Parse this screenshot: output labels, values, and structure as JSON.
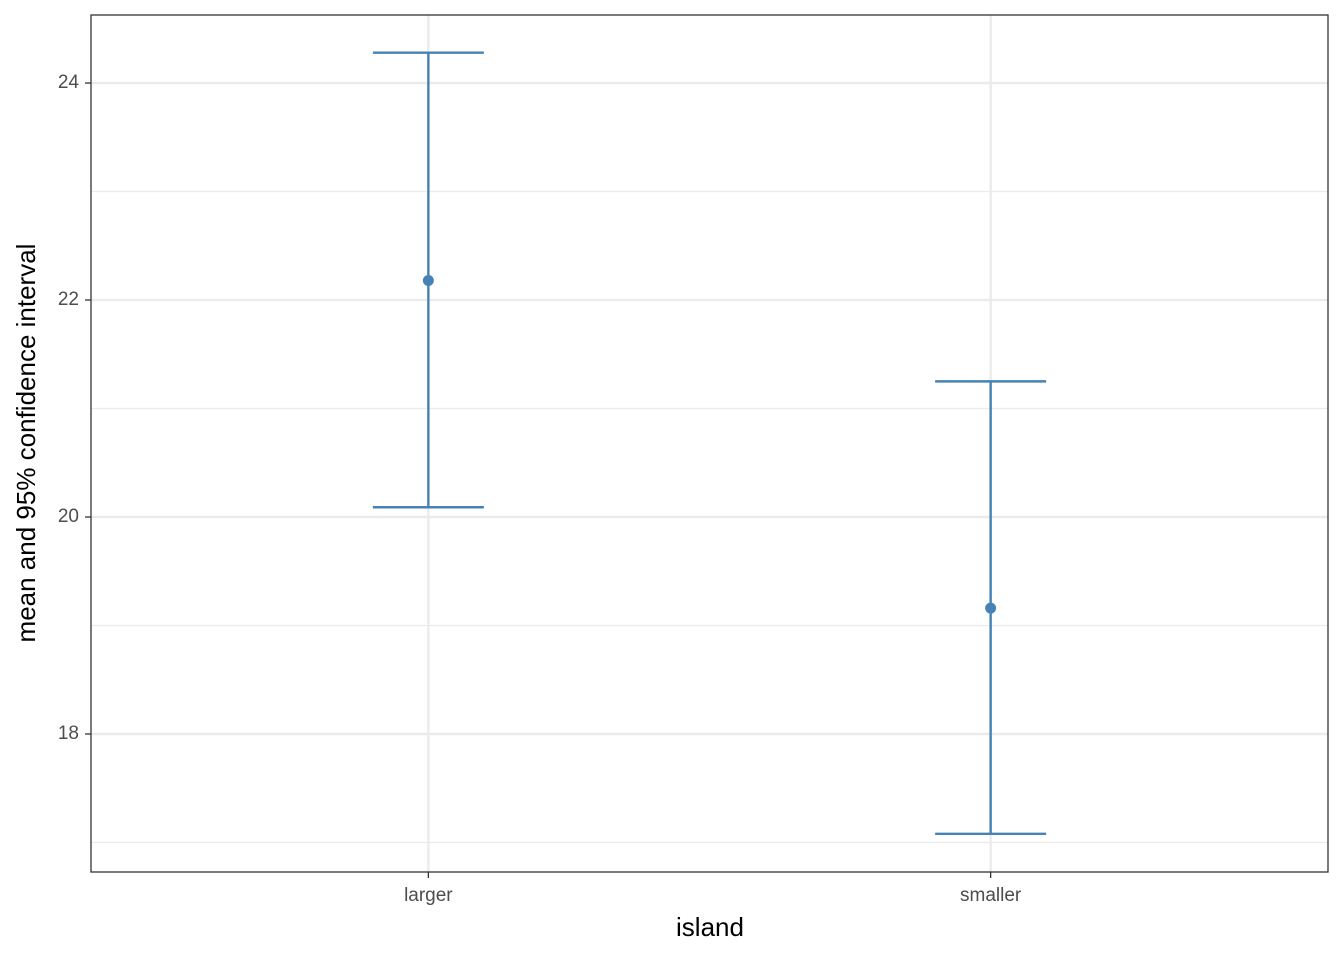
{
  "chart_data": {
    "type": "errorbar",
    "x_label": "island",
    "y_label": "mean and 95% confidence interval",
    "categories": [
      "larger",
      "smaller"
    ],
    "series": [
      {
        "color": "#4682b4",
        "values": [
          22.18,
          19.16
        ],
        "lower": [
          20.09,
          17.08
        ],
        "upper": [
          24.28,
          21.25
        ]
      }
    ],
    "ylim": [
      16.728,
      24.627
    ],
    "yticks": [
      18,
      20,
      22,
      24
    ],
    "minor_yticks": [
      17,
      19,
      21,
      23
    ],
    "grid": true
  }
}
